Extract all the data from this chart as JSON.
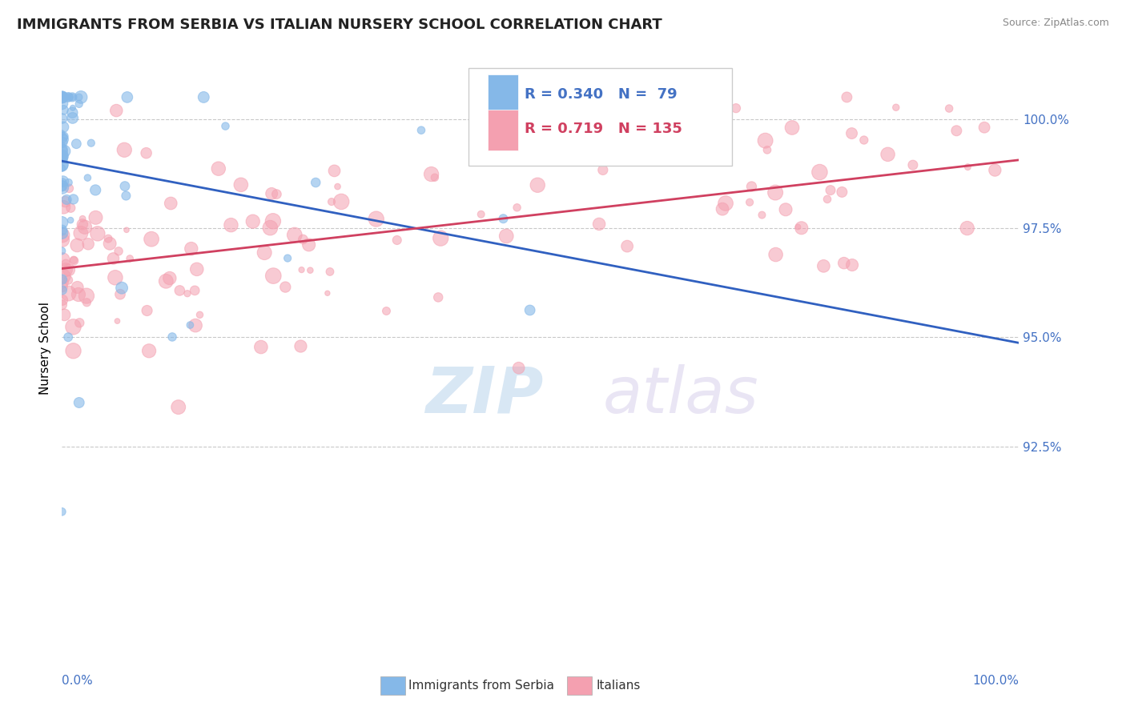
{
  "title": "IMMIGRANTS FROM SERBIA VS ITALIAN NURSERY SCHOOL CORRELATION CHART",
  "source": "Source: ZipAtlas.com",
  "ylabel": "Nursery School",
  "yticks": [
    92.5,
    95.0,
    97.5,
    100.0
  ],
  "legend_entries": [
    {
      "label": "Immigrants from Serbia",
      "R": 0.34,
      "N": 79,
      "color": "#85b8e8"
    },
    {
      "label": "Italians",
      "R": 0.719,
      "N": 135,
      "color": "#f4a0b0"
    }
  ],
  "blue_color": "#85b8e8",
  "pink_color": "#f4a0b0",
  "trend_blue": "#3060c0",
  "trend_pink": "#d04060",
  "background": "#ffffff",
  "title_fontsize": 13,
  "axis_color": "#4472c4",
  "grid_color": "#bbbbbb"
}
